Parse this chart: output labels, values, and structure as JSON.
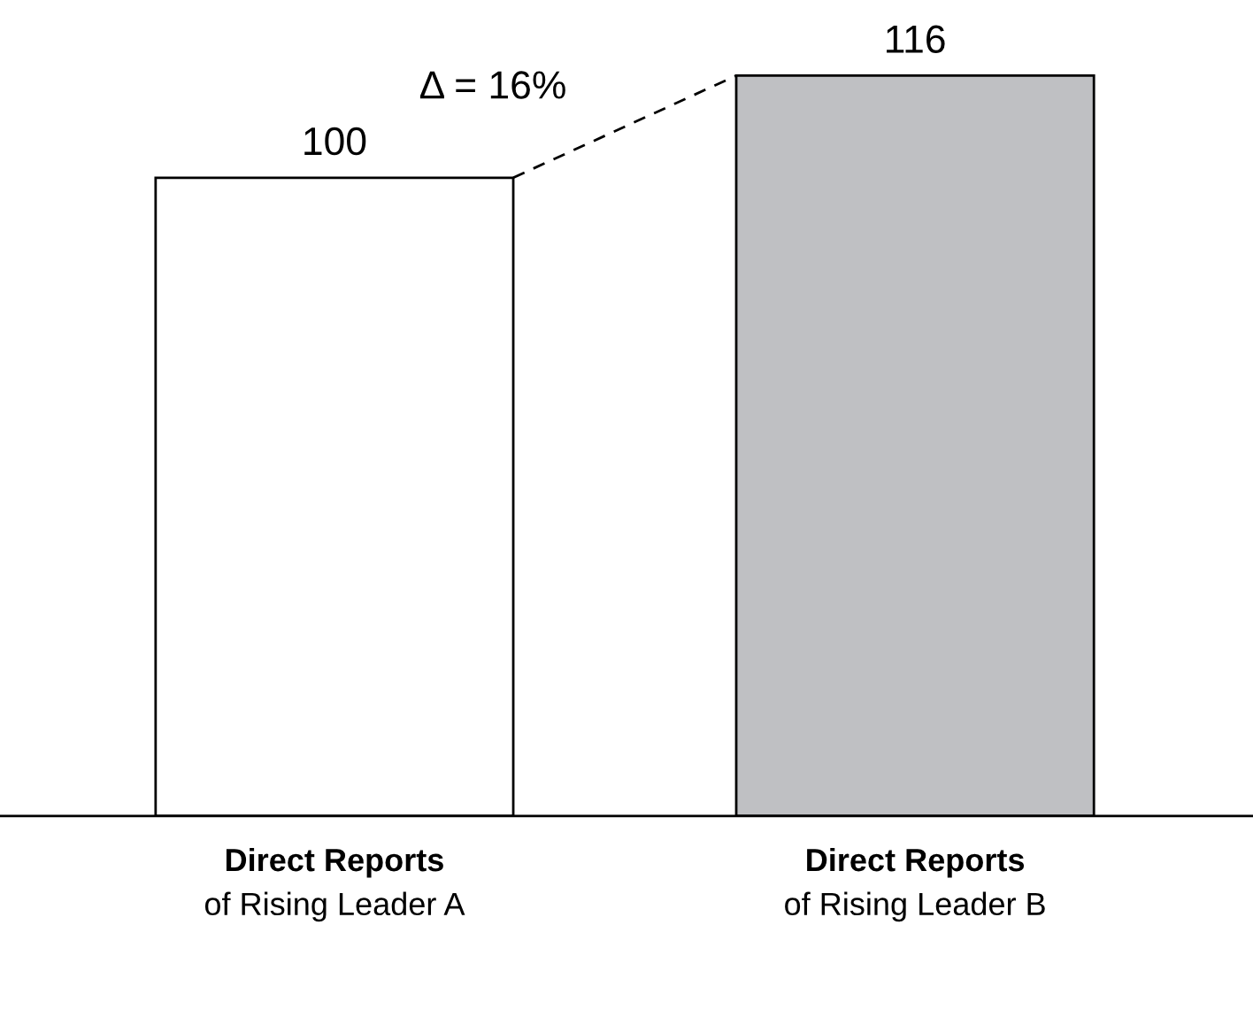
{
  "chart_data": {
    "type": "bar",
    "categories": [
      "Direct Reports\nof Rising Leader A",
      "Direct Reports\nof Rising Leader B"
    ],
    "values": [
      100,
      116
    ],
    "colors": [
      "#ffffff",
      "#bfc0c3"
    ],
    "data_labels": true,
    "annotations": [
      "Δ = 16%"
    ]
  }
}
